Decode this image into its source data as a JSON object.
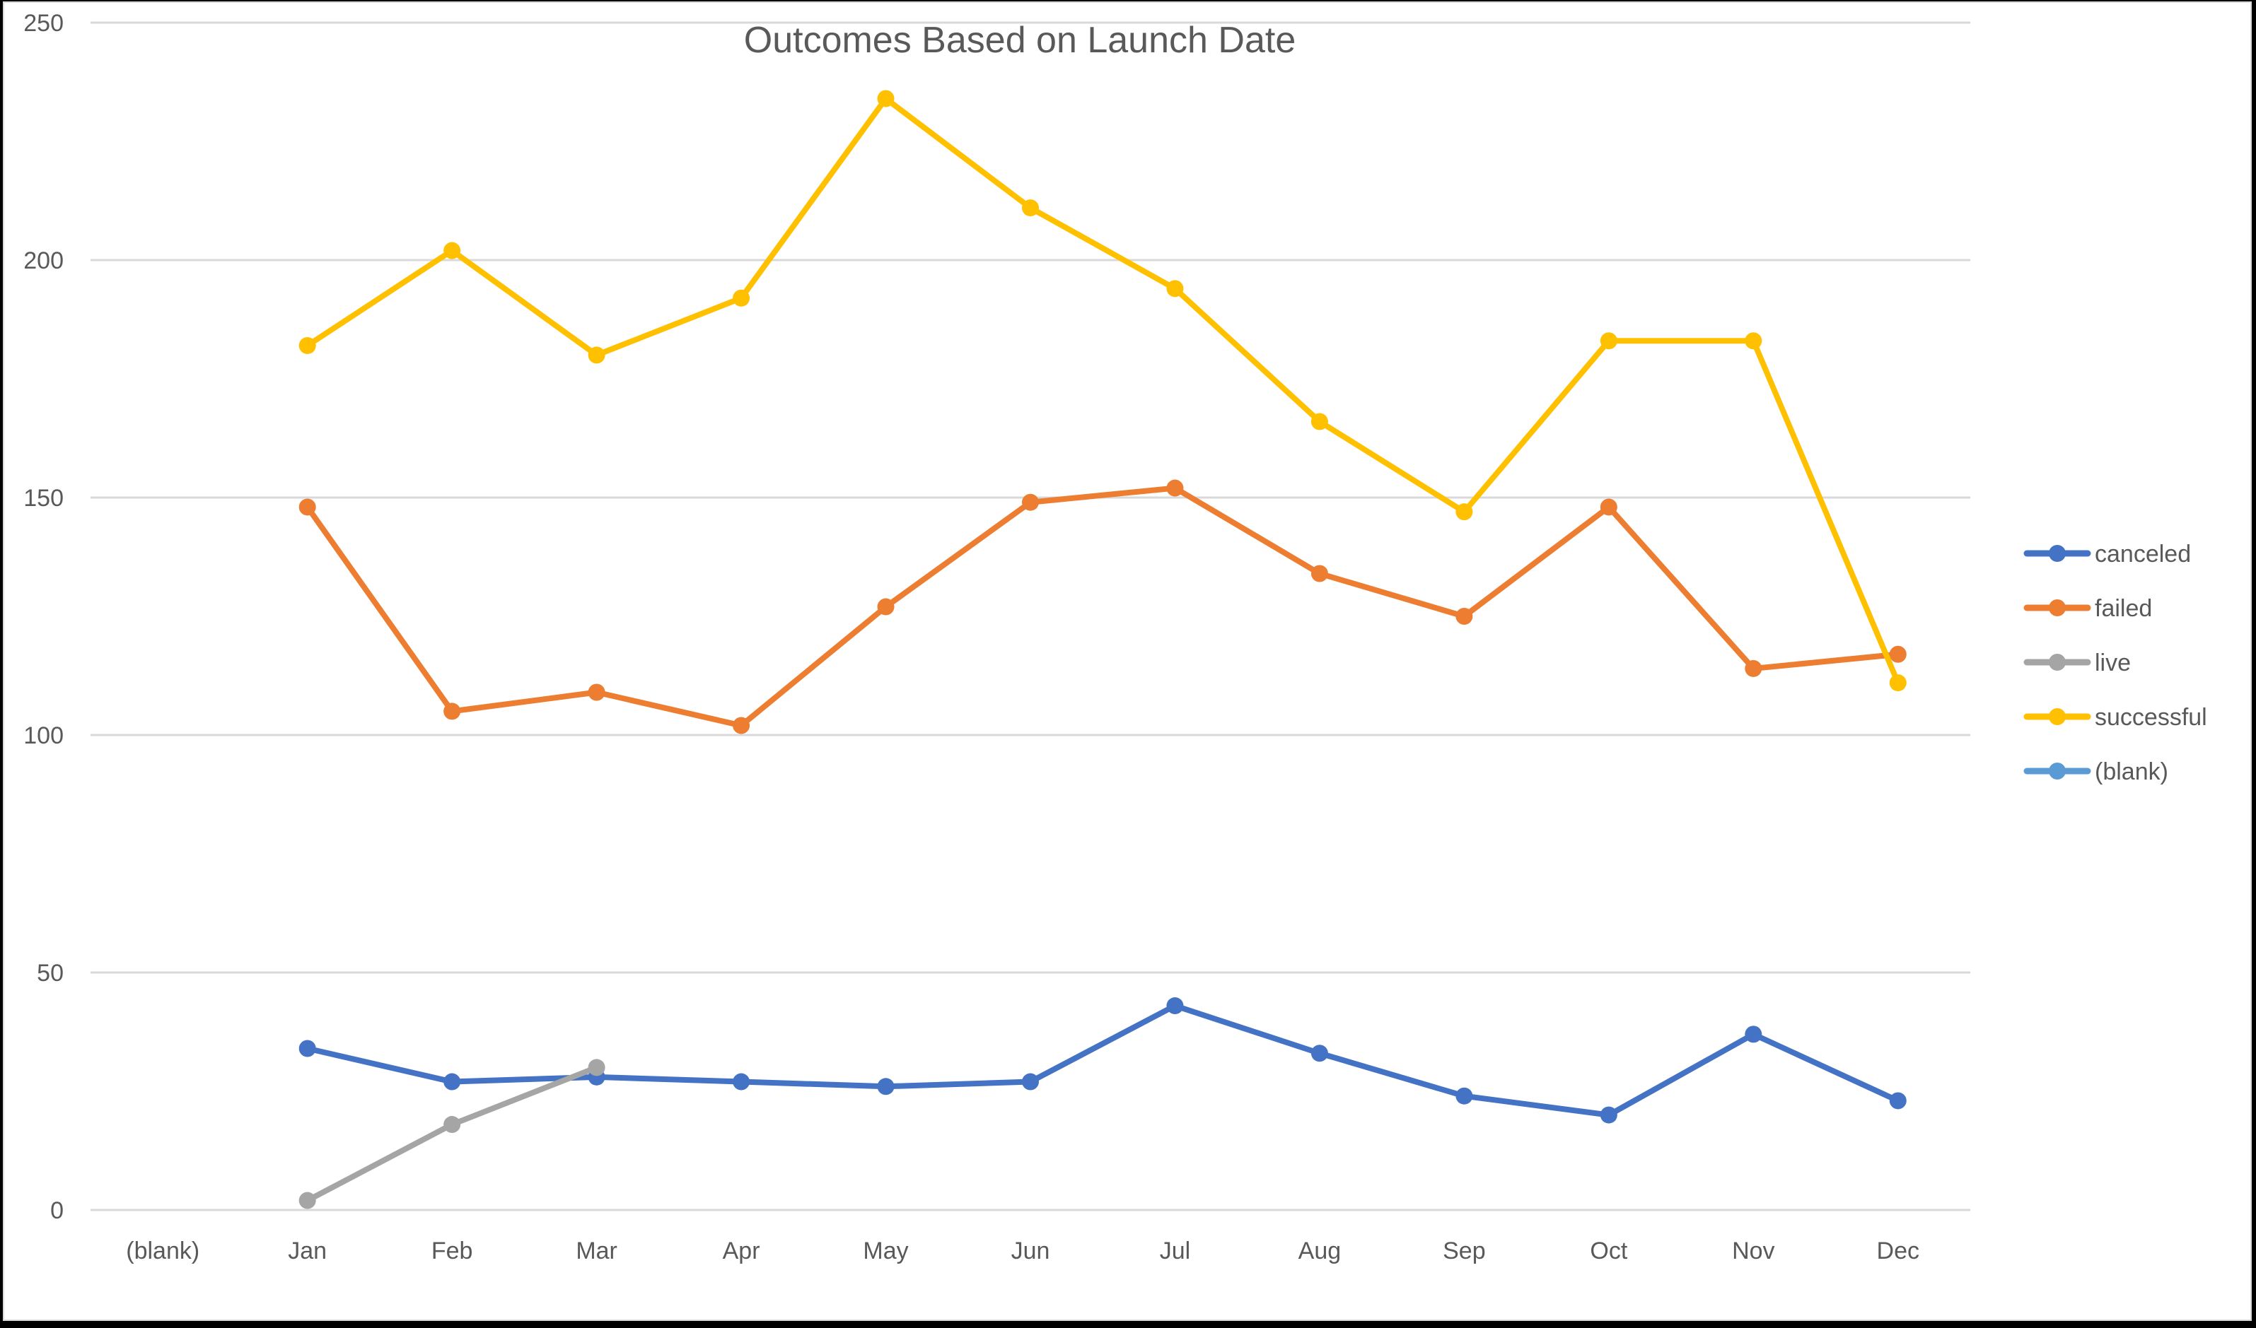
{
  "chart_data": {
    "type": "line",
    "title": "Outcomes Based on Launch Date",
    "xlabel": "",
    "ylabel": "",
    "ylim": [
      0,
      250
    ],
    "yticks": [
      0,
      50,
      100,
      150,
      200,
      250
    ],
    "grid": true,
    "legend_position": "right",
    "categories": [
      "(blank)",
      "Jan",
      "Feb",
      "Mar",
      "Apr",
      "May",
      "Jun",
      "Jul",
      "Aug",
      "Sep",
      "Oct",
      "Nov",
      "Dec"
    ],
    "series": [
      {
        "name": "canceled",
        "color": "#4472C4",
        "values": [
          null,
          34,
          27,
          28,
          27,
          26,
          27,
          43,
          33,
          24,
          20,
          37,
          23
        ]
      },
      {
        "name": "failed",
        "color": "#ED7D31",
        "values": [
          null,
          148,
          105,
          109,
          102,
          127,
          149,
          152,
          134,
          125,
          148,
          114,
          117
        ]
      },
      {
        "name": "live",
        "color": "#A5A5A5",
        "values": [
          null,
          2,
          18,
          30,
          null,
          null,
          null,
          null,
          null,
          null,
          null,
          null,
          null
        ]
      },
      {
        "name": "successful",
        "color": "#FFC000",
        "values": [
          null,
          182,
          202,
          180,
          192,
          234,
          211,
          194,
          166,
          147,
          183,
          183,
          111
        ]
      },
      {
        "name": "(blank)",
        "color": "#5B9BD5",
        "values": [
          null,
          null,
          null,
          null,
          null,
          null,
          null,
          null,
          null,
          null,
          null,
          null,
          null
        ]
      }
    ]
  }
}
